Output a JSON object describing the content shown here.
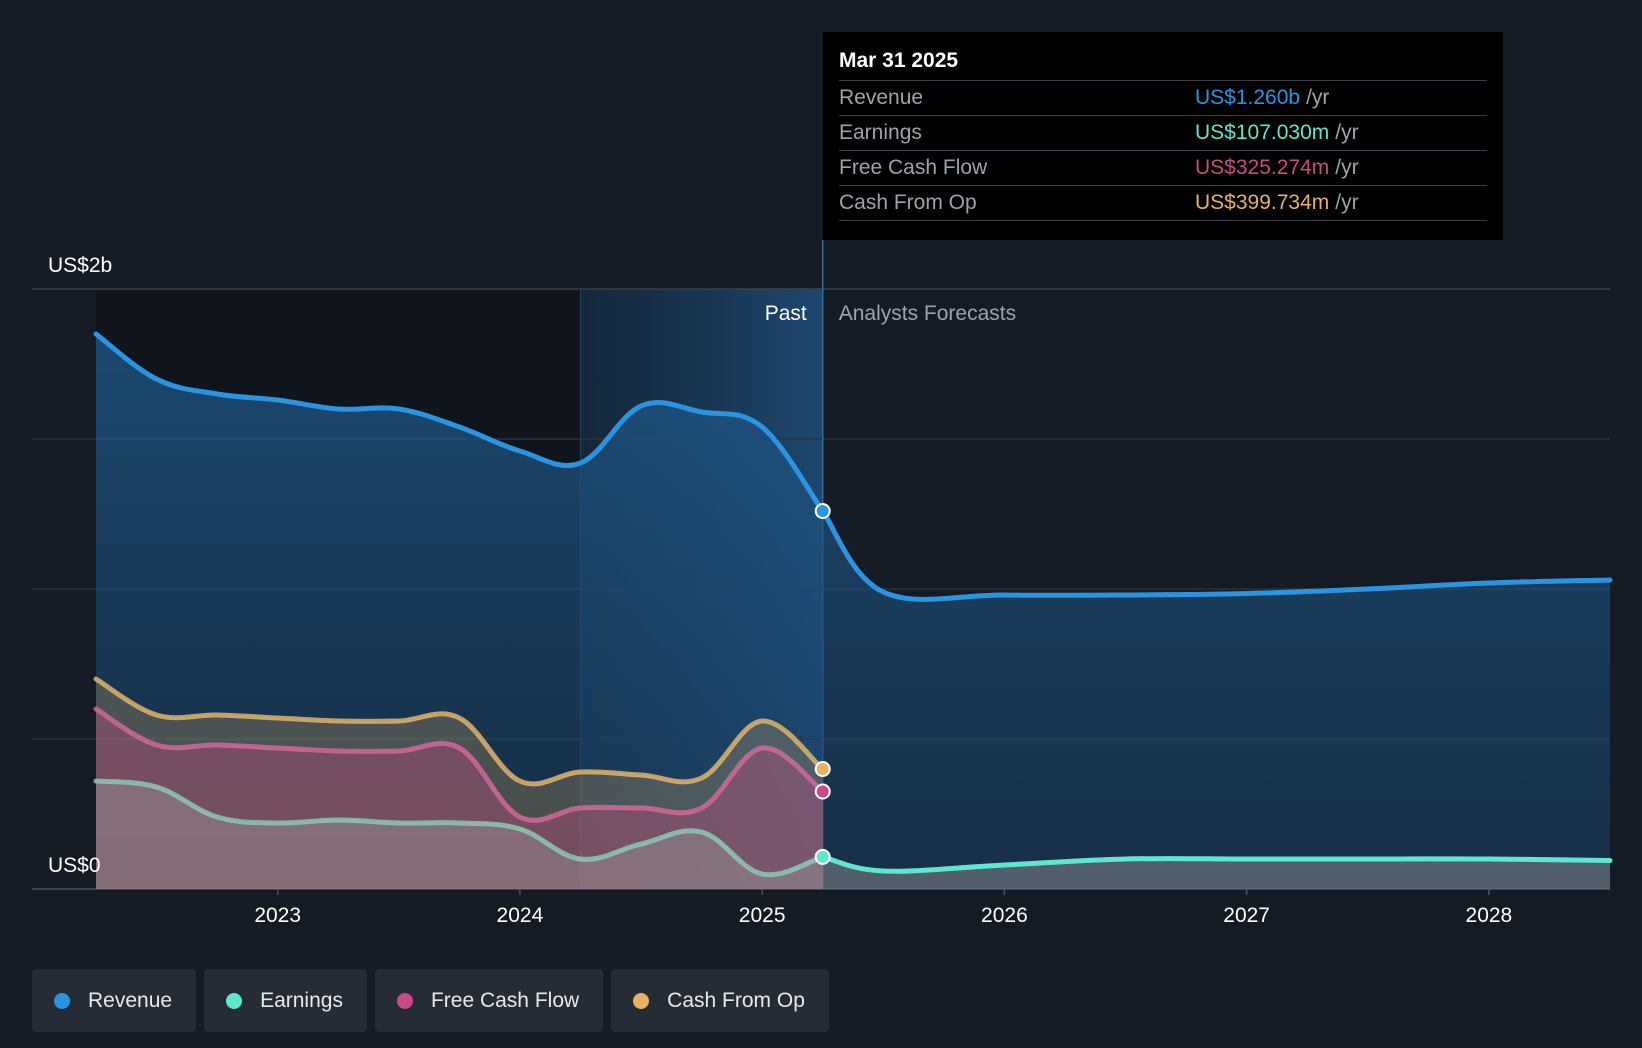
{
  "tooltip": {
    "date": "Mar 31 2025",
    "unit": "/yr",
    "rows": [
      {
        "label": "Revenue",
        "value": "US$1.260b"
      },
      {
        "label": "Earnings",
        "value": "US$107.030m"
      },
      {
        "label": "Free Cash Flow",
        "value": "US$325.274m"
      },
      {
        "label": "Cash From Op",
        "value": "US$399.734m"
      }
    ]
  },
  "labels": {
    "past": "Past",
    "forecast": "Analysts Forecasts",
    "y_top": "US$2b",
    "y_bottom": "US$0"
  },
  "legend": [
    {
      "label": "Revenue",
      "color": "#2b94e0"
    },
    {
      "label": "Earnings",
      "color": "#5ee6cf"
    },
    {
      "label": "Free Cash Flow",
      "color": "#c84a86"
    },
    {
      "label": "Cash From Op",
      "color": "#e8b061"
    }
  ],
  "chart_data": {
    "type": "line",
    "ylim": [
      0,
      2.0
    ],
    "y_unit": "US$ billions",
    "x_range": [
      2022.25,
      2028.5
    ],
    "xticks": [
      "2023",
      "2024",
      "2025",
      "2026",
      "2027",
      "2028"
    ],
    "past_end": 2025.25,
    "highlight_start": 2024.25,
    "grid": true,
    "series": [
      {
        "name": "Revenue",
        "color": "#2b94e0",
        "points": [
          [
            2022.25,
            1.85
          ],
          [
            2022.5,
            1.7
          ],
          [
            2022.75,
            1.65
          ],
          [
            2023.0,
            1.63
          ],
          [
            2023.25,
            1.6
          ],
          [
            2023.5,
            1.6
          ],
          [
            2023.75,
            1.54
          ],
          [
            2024.0,
            1.46
          ],
          [
            2024.25,
            1.42
          ],
          [
            2024.5,
            1.61
          ],
          [
            2024.75,
            1.59
          ],
          [
            2025.0,
            1.54
          ],
          [
            2025.25,
            1.26
          ],
          [
            2025.5,
            0.99
          ],
          [
            2026.0,
            0.98
          ],
          [
            2026.5,
            0.98
          ],
          [
            2027.0,
            0.985
          ],
          [
            2027.5,
            1.0
          ],
          [
            2028.0,
            1.02
          ],
          [
            2028.5,
            1.03
          ]
        ]
      },
      {
        "name": "Earnings",
        "color": "#5ee6cf",
        "points": [
          [
            2022.25,
            0.36
          ],
          [
            2022.5,
            0.34
          ],
          [
            2022.75,
            0.24
          ],
          [
            2023.0,
            0.22
          ],
          [
            2023.25,
            0.23
          ],
          [
            2023.5,
            0.22
          ],
          [
            2023.75,
            0.22
          ],
          [
            2024.0,
            0.2
          ],
          [
            2024.25,
            0.1
          ],
          [
            2024.5,
            0.15
          ],
          [
            2024.75,
            0.19
          ],
          [
            2025.0,
            0.05
          ],
          [
            2025.25,
            0.107
          ],
          [
            2025.5,
            0.06
          ],
          [
            2026.0,
            0.08
          ],
          [
            2026.5,
            0.1
          ],
          [
            2027.0,
            0.1
          ],
          [
            2027.5,
            0.1
          ],
          [
            2028.0,
            0.1
          ],
          [
            2028.5,
            0.095
          ]
        ]
      },
      {
        "name": "Free Cash Flow",
        "color": "#c84a86",
        "points": [
          [
            2022.25,
            0.6
          ],
          [
            2022.5,
            0.48
          ],
          [
            2022.75,
            0.48
          ],
          [
            2023.0,
            0.47
          ],
          [
            2023.25,
            0.46
          ],
          [
            2023.5,
            0.46
          ],
          [
            2023.75,
            0.47
          ],
          [
            2024.0,
            0.24
          ],
          [
            2024.25,
            0.27
          ],
          [
            2024.5,
            0.27
          ],
          [
            2024.75,
            0.27
          ],
          [
            2025.0,
            0.47
          ],
          [
            2025.25,
            0.325
          ]
        ]
      },
      {
        "name": "Cash From Op",
        "color": "#e8b061",
        "points": [
          [
            2022.25,
            0.7
          ],
          [
            2022.5,
            0.58
          ],
          [
            2022.75,
            0.58
          ],
          [
            2023.0,
            0.57
          ],
          [
            2023.25,
            0.56
          ],
          [
            2023.5,
            0.56
          ],
          [
            2023.75,
            0.57
          ],
          [
            2024.0,
            0.36
          ],
          [
            2024.25,
            0.39
          ],
          [
            2024.5,
            0.38
          ],
          [
            2024.75,
            0.37
          ],
          [
            2025.0,
            0.56
          ],
          [
            2025.25,
            0.4
          ]
        ]
      }
    ]
  }
}
